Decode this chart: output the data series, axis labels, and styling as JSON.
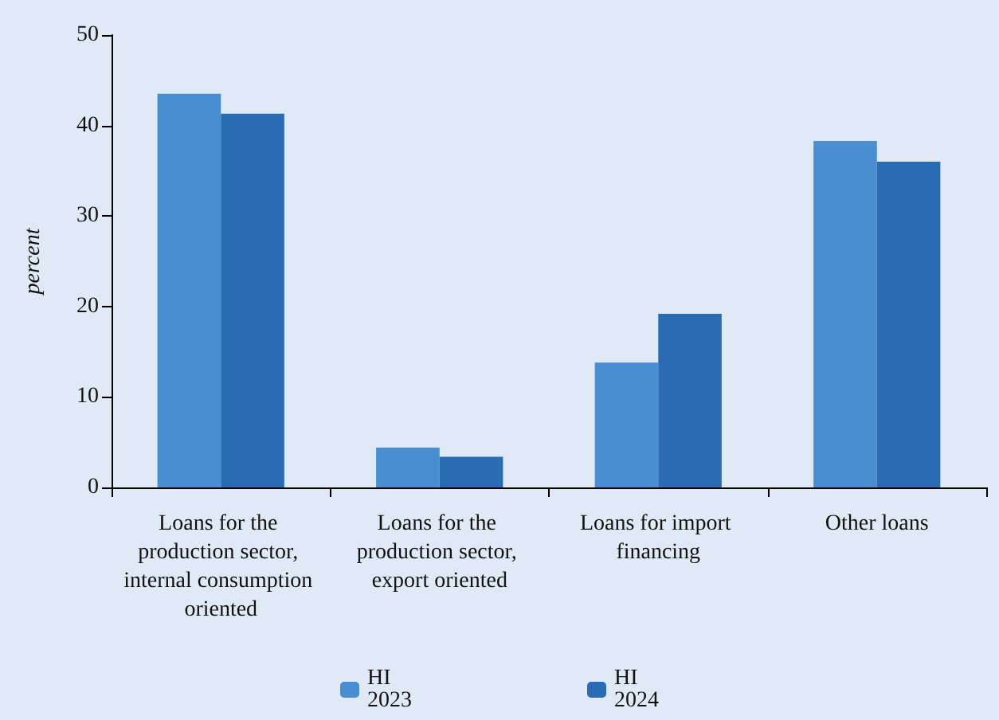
{
  "chart_data": {
    "type": "bar",
    "ylabel": "percent",
    "categories": [
      "Loans for the production sector, internal consumption oriented",
      "Loans for the production sector, export oriented",
      "Loans for import financing",
      "Other loans"
    ],
    "series": [
      {
        "name": "HI 2023",
        "color": "#4a8ed2",
        "values": [
          43.5,
          4.4,
          13.8,
          38.3
        ]
      },
      {
        "name": "HI 2024",
        "color": "#2a6cb3",
        "values": [
          41.3,
          3.4,
          19.2,
          36.0
        ]
      }
    ],
    "ylim": [
      0,
      50
    ],
    "yticks": [
      0,
      10,
      20,
      30,
      40,
      50
    ],
    "grid": false,
    "legend": "bottom"
  }
}
